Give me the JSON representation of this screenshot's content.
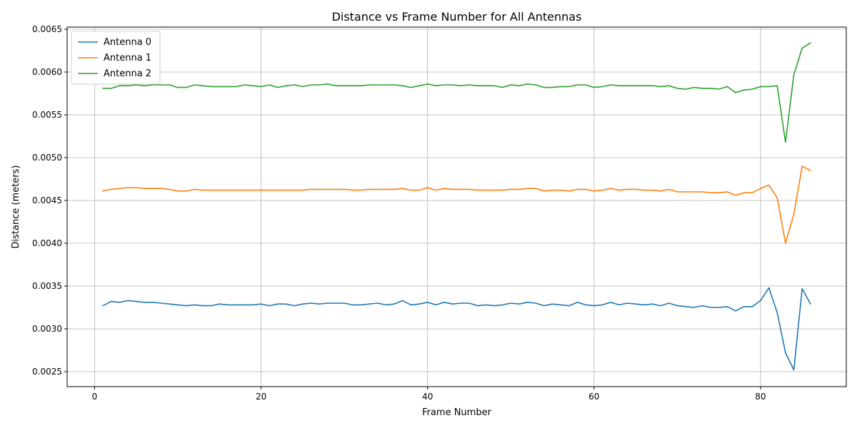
{
  "chart_data": {
    "type": "line",
    "title": "Distance vs Frame Number for All Antennas",
    "xlabel": "Frame Number",
    "ylabel": "Distance (meters)",
    "xlim": [
      -3.3,
      90.3
    ],
    "ylim": [
      0.002325,
      0.006525
    ],
    "xticks": [
      0,
      20,
      40,
      60,
      80
    ],
    "xtick_labels": [
      "0",
      "20",
      "40",
      "60",
      "80"
    ],
    "yticks": [
      0.0025,
      0.003,
      0.0035,
      0.004,
      0.0045,
      0.005,
      0.0055,
      0.006,
      0.0065
    ],
    "ytick_labels": [
      "0.0025",
      "0.0030",
      "0.0035",
      "0.0040",
      "0.0045",
      "0.0050",
      "0.0055",
      "0.0060",
      "0.0065"
    ],
    "grid": true,
    "legend_position": "top-left",
    "x": [
      1,
      2,
      3,
      4,
      5,
      6,
      7,
      8,
      9,
      10,
      11,
      12,
      13,
      14,
      15,
      16,
      17,
      18,
      19,
      20,
      21,
      22,
      23,
      24,
      25,
      26,
      27,
      28,
      29,
      30,
      31,
      32,
      33,
      34,
      35,
      36,
      37,
      38,
      39,
      40,
      41,
      42,
      43,
      44,
      45,
      46,
      47,
      48,
      49,
      50,
      51,
      52,
      53,
      54,
      55,
      56,
      57,
      58,
      59,
      60,
      61,
      62,
      63,
      64,
      65,
      66,
      67,
      68,
      69,
      70,
      71,
      72,
      73,
      74,
      75,
      76,
      77,
      78,
      79,
      80,
      81,
      82,
      83,
      84,
      85,
      86
    ],
    "series": [
      {
        "name": "Antenna 0",
        "color": "#1f77b4",
        "values": [
          0.00327,
          0.00332,
          0.00331,
          0.00333,
          0.00332,
          0.00331,
          0.00331,
          0.0033,
          0.00329,
          0.00328,
          0.00327,
          0.00328,
          0.00327,
          0.00327,
          0.00329,
          0.00328,
          0.00328,
          0.00328,
          0.00328,
          0.00329,
          0.00327,
          0.00329,
          0.00329,
          0.00327,
          0.00329,
          0.0033,
          0.00329,
          0.0033,
          0.0033,
          0.0033,
          0.00328,
          0.00328,
          0.00329,
          0.0033,
          0.00328,
          0.00329,
          0.00333,
          0.00328,
          0.00329,
          0.00331,
          0.00328,
          0.00331,
          0.00329,
          0.0033,
          0.0033,
          0.00327,
          0.00328,
          0.00327,
          0.00328,
          0.0033,
          0.00329,
          0.00331,
          0.0033,
          0.00327,
          0.00329,
          0.00328,
          0.00327,
          0.00331,
          0.00328,
          0.00327,
          0.00328,
          0.00331,
          0.00328,
          0.0033,
          0.00329,
          0.00328,
          0.00329,
          0.00327,
          0.0033,
          0.00327,
          0.00326,
          0.00325,
          0.00327,
          0.00325,
          0.00325,
          0.00326,
          0.00321,
          0.00326,
          0.00326,
          0.00333,
          0.00348,
          0.00319,
          0.00272,
          0.00252,
          0.00347,
          0.00329
        ]
      },
      {
        "name": "Antenna 1",
        "color": "#ff7f0e",
        "values": [
          0.00461,
          0.00463,
          0.00464,
          0.00465,
          0.00465,
          0.00464,
          0.00464,
          0.00464,
          0.00463,
          0.00461,
          0.00461,
          0.00463,
          0.00462,
          0.00462,
          0.00462,
          0.00462,
          0.00462,
          0.00462,
          0.00462,
          0.00462,
          0.00462,
          0.00462,
          0.00462,
          0.00462,
          0.00462,
          0.00463,
          0.00463,
          0.00463,
          0.00463,
          0.00463,
          0.00462,
          0.00462,
          0.00463,
          0.00463,
          0.00463,
          0.00463,
          0.00464,
          0.00462,
          0.00462,
          0.00465,
          0.00462,
          0.00464,
          0.00463,
          0.00463,
          0.00463,
          0.00462,
          0.00462,
          0.00462,
          0.00462,
          0.00463,
          0.00463,
          0.00464,
          0.00464,
          0.00461,
          0.00462,
          0.00462,
          0.00461,
          0.00463,
          0.00463,
          0.00461,
          0.00462,
          0.00464,
          0.00462,
          0.00463,
          0.00463,
          0.00462,
          0.00462,
          0.00461,
          0.00463,
          0.0046,
          0.0046,
          0.0046,
          0.0046,
          0.00459,
          0.00459,
          0.0046,
          0.00456,
          0.00459,
          0.00459,
          0.00464,
          0.00468,
          0.00453,
          0.004,
          0.00434,
          0.0049,
          0.00485
        ]
      },
      {
        "name": "Antenna 2",
        "color": "#2ca02c",
        "values": [
          0.00581,
          0.00581,
          0.00584,
          0.00584,
          0.00585,
          0.00584,
          0.00585,
          0.00585,
          0.00585,
          0.00582,
          0.00582,
          0.00585,
          0.00584,
          0.00583,
          0.00583,
          0.00583,
          0.00583,
          0.00585,
          0.00584,
          0.00583,
          0.00585,
          0.00582,
          0.00584,
          0.00585,
          0.00583,
          0.00585,
          0.00585,
          0.00586,
          0.00584,
          0.00584,
          0.00584,
          0.00584,
          0.00585,
          0.00585,
          0.00585,
          0.00585,
          0.00584,
          0.00582,
          0.00584,
          0.00586,
          0.00584,
          0.00585,
          0.00585,
          0.00584,
          0.00585,
          0.00584,
          0.00584,
          0.00584,
          0.00582,
          0.00585,
          0.00584,
          0.00586,
          0.00585,
          0.00582,
          0.00582,
          0.00583,
          0.00583,
          0.00585,
          0.00585,
          0.00582,
          0.00583,
          0.00585,
          0.00584,
          0.00584,
          0.00584,
          0.00584,
          0.00584,
          0.00583,
          0.00584,
          0.00581,
          0.0058,
          0.00582,
          0.00581,
          0.00581,
          0.0058,
          0.00583,
          0.00576,
          0.00579,
          0.0058,
          0.00583,
          0.00583,
          0.00584,
          0.00518,
          0.00597,
          0.00628,
          0.00634
        ]
      }
    ]
  }
}
